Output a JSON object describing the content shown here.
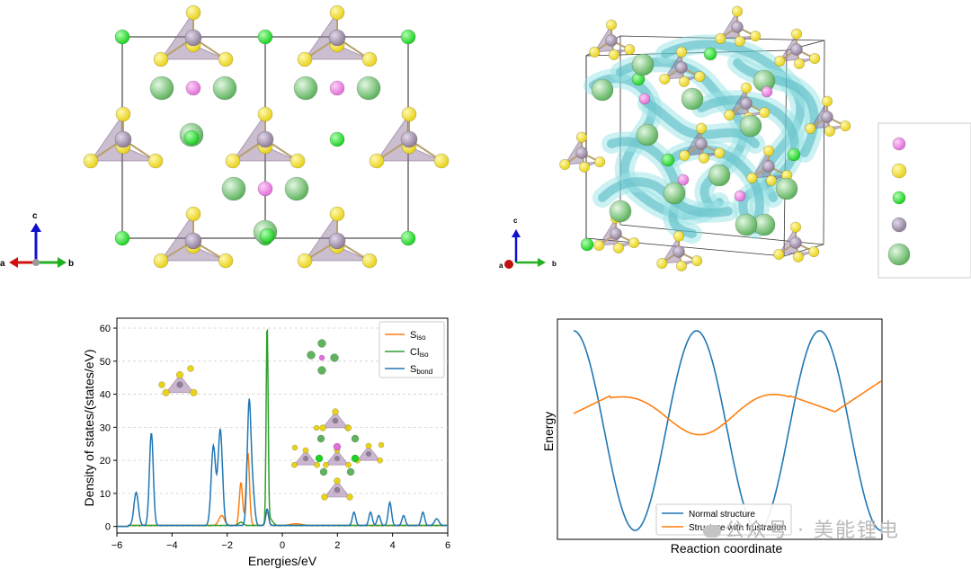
{
  "structure_legend_colors": [
    "#e070d8",
    "#e8d21a",
    "#1fd025",
    "#8f7f98",
    "#5fb35f"
  ],
  "axes_triad_left": {
    "a": "a",
    "b": "b",
    "c": "c"
  },
  "axes_triad_right": {
    "a": "a",
    "b": "b",
    "c": "c"
  },
  "chart_data": [
    {
      "type": "line",
      "ylabel": "Density of states/(states/eV)",
      "xlabel": "Energies/eV",
      "xlim": [
        -6,
        6
      ],
      "ylim": [
        -2,
        63
      ],
      "xticks": [
        "−6",
        "−4",
        "−2",
        "0",
        "2",
        "4",
        "6"
      ],
      "yticks": [
        "0",
        "10",
        "20",
        "30",
        "40",
        "50",
        "60"
      ],
      "grid": "horizontal dashed",
      "legend_position": "top-right",
      "legend": [
        {
          "label": "S",
          "sub": "iso",
          "color": "#ff7f0e"
        },
        {
          "label": "Cl",
          "sub": "iso",
          "color": "#2ca02c"
        },
        {
          "label": "S",
          "sub": "bond",
          "color": "#1f77b4"
        }
      ],
      "series": [
        {
          "color": "#ff7f0e",
          "peaks": [
            [
              -2.2,
              3,
              0.1
            ],
            [
              -1.5,
              13,
              0.06
            ],
            [
              -1.25,
              22,
              0.06
            ],
            [
              -0.55,
              4,
              0.06
            ],
            [
              0.5,
              0.5,
              0.2
            ]
          ]
        },
        {
          "color": "#2ca02c",
          "peaks": [
            [
              -1.5,
              1,
              0.08
            ],
            [
              -0.55,
              60,
              0.035
            ],
            [
              -0.45,
              2,
              0.1
            ]
          ]
        },
        {
          "color": "#1f77b4",
          "peaks": [
            [
              -5.3,
              10,
              0.08
            ],
            [
              -4.75,
              28,
              0.07
            ],
            [
              -2.5,
              24,
              0.08
            ],
            [
              -2.25,
              29,
              0.08
            ],
            [
              -1.2,
              38,
              0.07
            ],
            [
              -1.05,
              8,
              0.06
            ],
            [
              -0.55,
              5,
              0.05
            ],
            [
              2.6,
              4,
              0.06
            ],
            [
              3.2,
              4,
              0.06
            ],
            [
              3.5,
              3,
              0.06
            ],
            [
              3.9,
              7,
              0.06
            ],
            [
              4.4,
              3,
              0.06
            ],
            [
              5.1,
              4,
              0.06
            ],
            [
              5.6,
              2,
              0.08
            ]
          ]
        }
      ]
    },
    {
      "type": "line",
      "xlabel": "Reaction coordinate",
      "ylabel": "Energy",
      "grid": "off",
      "legend_position": "bottom-center",
      "series": [
        {
          "name": "Normal structure",
          "color": "#1f77b4",
          "function": "0.5 + 0.5*cos(5*pi*t)"
        },
        {
          "name": "Structure with frustration",
          "color": "#ff7f0e",
          "function": "slow wave 0.40..0.63"
        }
      ],
      "annotations": [
        "Normal structure",
        "Structure with frustration"
      ]
    }
  ],
  "watermark": "公众号 · 美能锂电"
}
